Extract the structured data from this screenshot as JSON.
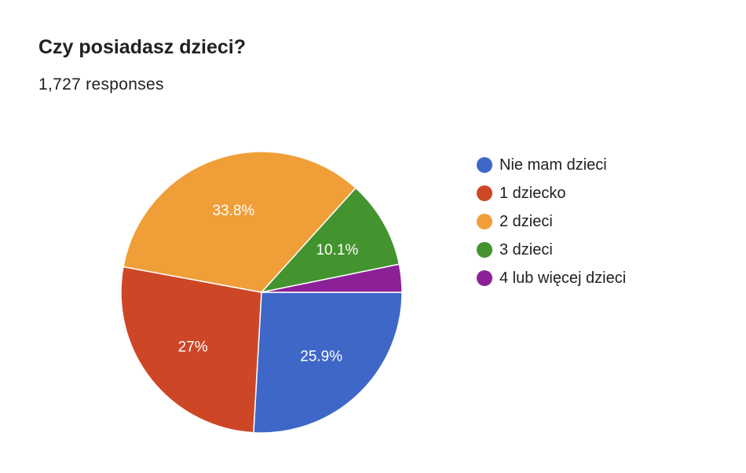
{
  "title": "Czy posiadasz dzieci?",
  "subtitle": "1,727 responses",
  "chart_data": {
    "type": "pie",
    "title": "Czy posiadasz dzieci?",
    "subtitle": "1,727 responses",
    "categories": [
      "Nie mam dzieci",
      "1 dziecko",
      "2 dzieci",
      "3 dzieci",
      "4 lub więcej dzieci"
    ],
    "values": [
      25.9,
      27,
      33.8,
      10.1,
      3.2
    ],
    "labels": [
      "25.9%",
      "27%",
      "33.8%",
      "10.1%",
      ""
    ],
    "colors": [
      "#3f67c8",
      "#cd4727",
      "#f09f38",
      "#43932f",
      "#8c2197"
    ],
    "legend_position": "right"
  }
}
